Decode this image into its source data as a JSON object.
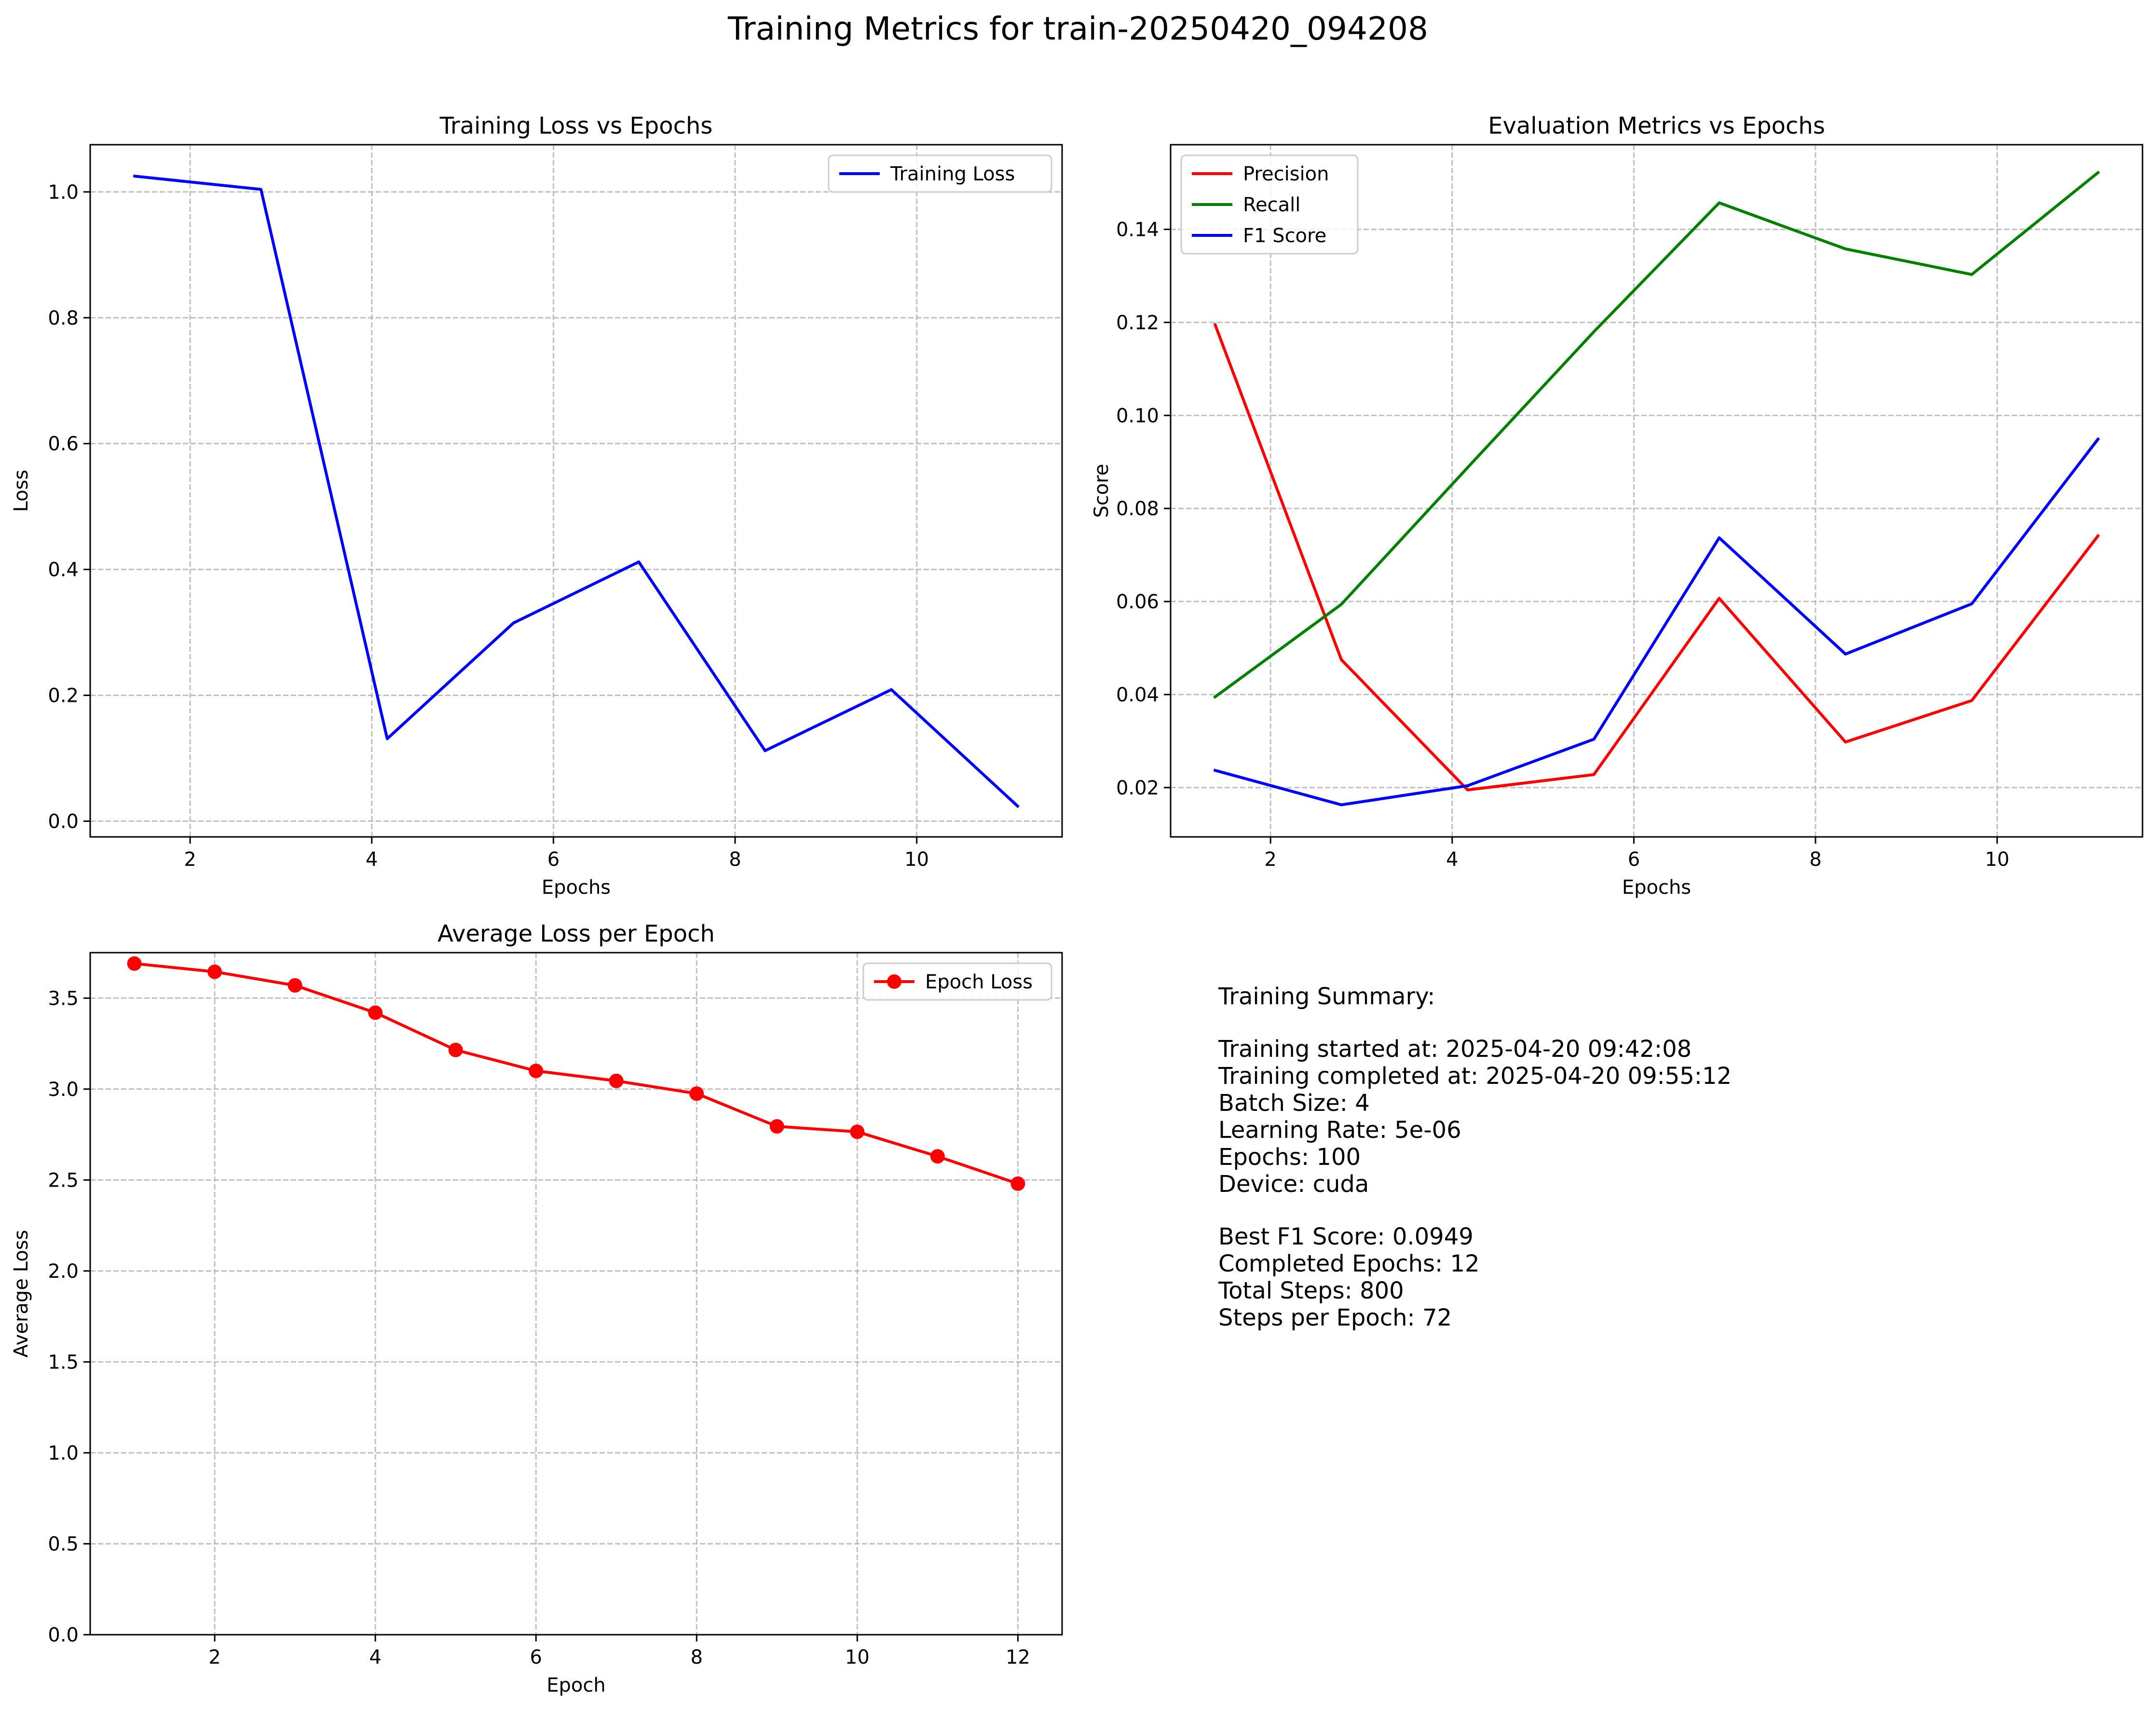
{
  "suptitle": "Training Metrics for train-20250420_094208",
  "colors": {
    "blue": "#0000ff",
    "red": "#ff0000",
    "green": "#008000"
  },
  "chart_data": [
    {
      "id": "training-loss",
      "type": "line",
      "title": "Training Loss vs Epochs",
      "xlabel": "Epochs",
      "ylabel": "Loss",
      "xlim": [
        0.9,
        11.6
      ],
      "ylim": [
        -0.025,
        1.075
      ],
      "xticks": [
        2,
        4,
        6,
        8,
        10
      ],
      "yticks": [
        0.0,
        0.2,
        0.4,
        0.6,
        0.8,
        1.0
      ],
      "ytick_decimals": 1,
      "grid": true,
      "legend": "top-right",
      "series": [
        {
          "name": "Training Loss",
          "color": "#0000ff",
          "marker": false,
          "x": [
            1.39,
            2.78,
            4.17,
            5.56,
            6.94,
            8.33,
            9.72,
            11.11
          ],
          "y": [
            1.025,
            1.004,
            0.131,
            0.315,
            0.412,
            0.112,
            0.209,
            0.024
          ]
        }
      ]
    },
    {
      "id": "eval-metrics",
      "type": "line",
      "title": "Evaluation Metrics vs Epochs",
      "xlabel": "Epochs",
      "ylabel": "Score",
      "xlim": [
        0.9,
        11.6
      ],
      "ylim": [
        0.0094,
        0.1582
      ],
      "xticks": [
        2,
        4,
        6,
        8,
        10
      ],
      "yticks": [
        0.02,
        0.04,
        0.06,
        0.08,
        0.1,
        0.12,
        0.14
      ],
      "ytick_decimals": 2,
      "grid": true,
      "legend": "top-left",
      "series": [
        {
          "name": "Precision",
          "color": "#ff0000",
          "marker": false,
          "x": [
            1.39,
            2.78,
            4.17,
            5.56,
            6.94,
            8.33,
            9.72,
            11.11
          ],
          "y": [
            0.1195,
            0.0475,
            0.0195,
            0.0228,
            0.0607,
            0.0298,
            0.0387,
            0.0741
          ]
        },
        {
          "name": "Recall",
          "color": "#008000",
          "marker": false,
          "x": [
            1.39,
            2.78,
            4.17,
            5.56,
            6.94,
            8.33,
            9.72,
            11.11
          ],
          "y": [
            0.0395,
            0.0594,
            0.0888,
            0.118,
            0.1457,
            0.1358,
            0.1303,
            0.1522
          ]
        },
        {
          "name": "F1 Score",
          "color": "#0000ff",
          "marker": false,
          "x": [
            1.39,
            2.78,
            4.17,
            5.56,
            6.94,
            8.33,
            9.72,
            11.11
          ],
          "y": [
            0.0237,
            0.0163,
            0.0204,
            0.0304,
            0.0737,
            0.0487,
            0.0595,
            0.0949
          ]
        }
      ]
    },
    {
      "id": "average-loss",
      "type": "line",
      "title": "Average Loss per Epoch",
      "xlabel": "Epoch",
      "ylabel": "Average Loss",
      "xlim": [
        0.45,
        12.55
      ],
      "ylim": [
        0.0,
        3.75
      ],
      "xticks": [
        2,
        4,
        6,
        8,
        10,
        12
      ],
      "yticks": [
        0.0,
        0.5,
        1.0,
        1.5,
        2.0,
        2.5,
        3.0,
        3.5
      ],
      "ytick_decimals": 1,
      "grid": true,
      "legend": "top-right",
      "series": [
        {
          "name": "Epoch Loss",
          "color": "#ff0000",
          "marker": true,
          "x": [
            1,
            2,
            3,
            4,
            5,
            6,
            7,
            8,
            9,
            10,
            11,
            12
          ],
          "y": [
            3.69,
            3.645,
            3.57,
            3.42,
            3.215,
            3.1,
            3.045,
            2.975,
            2.795,
            2.765,
            2.63,
            2.48
          ]
        }
      ]
    }
  ],
  "summary": {
    "heading": "Training Summary:",
    "lines": [
      "Training started at: 2025-04-20 09:42:08",
      "Training completed at: 2025-04-20 09:55:12",
      "Batch Size: 4",
      "Learning Rate: 5e-06",
      "Epochs: 100",
      "Device: cuda"
    ],
    "result_lines": [
      "Best F1 Score: 0.0949",
      "Completed Epochs: 12",
      "Total Steps: 800",
      "Steps per Epoch: 72"
    ]
  }
}
